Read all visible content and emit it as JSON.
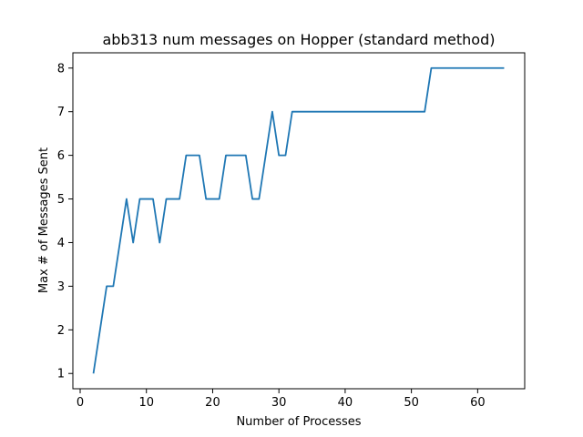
{
  "chart_data": {
    "type": "line",
    "title": "abb313 num messages on Hopper (standard method)",
    "xlabel": "Number of Processes",
    "ylabel": "Max # of Messages Sent",
    "xlim": [
      -1.1,
      67.1
    ],
    "ylim": [
      0.65,
      8.35
    ],
    "xticks": [
      0,
      10,
      20,
      30,
      40,
      50,
      60
    ],
    "yticks": [
      1,
      2,
      3,
      4,
      5,
      6,
      7,
      8
    ],
    "grid": false,
    "color": "#1f77b4",
    "series": [
      {
        "x": [
          2,
          3,
          4,
          5,
          6,
          7,
          8,
          9,
          10,
          11,
          12,
          13,
          14,
          15,
          16,
          17,
          18,
          19,
          20,
          21,
          22,
          23,
          24,
          25,
          26,
          27,
          28,
          29,
          30,
          31,
          32,
          33,
          34,
          35,
          36,
          37,
          38,
          39,
          40,
          41,
          42,
          43,
          44,
          45,
          46,
          47,
          48,
          49,
          50,
          51,
          52,
          53,
          54,
          55,
          56,
          57,
          58,
          59,
          60,
          61,
          62,
          63,
          64
        ],
        "y": [
          1,
          2,
          3,
          3,
          4,
          5,
          4,
          5,
          5,
          5,
          4,
          5,
          5,
          5,
          6,
          6,
          6,
          5,
          5,
          5,
          6,
          6,
          6,
          6,
          5,
          5,
          6,
          7,
          6,
          6,
          7,
          7,
          7,
          7,
          7,
          7,
          7,
          7,
          7,
          7,
          7,
          7,
          7,
          7,
          7,
          7,
          7,
          7,
          7,
          7,
          7,
          8,
          8,
          8,
          8,
          8,
          8,
          8,
          8,
          8,
          8,
          8,
          8
        ]
      }
    ]
  }
}
